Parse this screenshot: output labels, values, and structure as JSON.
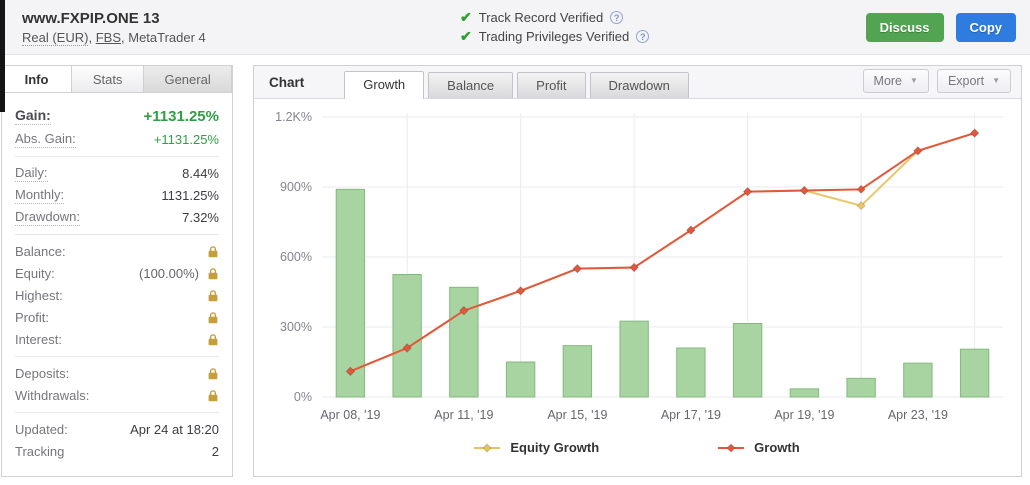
{
  "header": {
    "title": "www.FXPIP.ONE 13",
    "account": "Real (EUR)",
    "broker": "FBS",
    "platform": "MetaTrader 4",
    "separator": ", ",
    "verifications": [
      "Track Record Verified",
      "Trading Privileges Verified"
    ],
    "buttons": {
      "discuss": "Discuss",
      "copy": "Copy"
    },
    "colors": {
      "discuss": "#52a452",
      "copy": "#2f7ce0"
    }
  },
  "info_panel": {
    "tabs": [
      {
        "label": "Info",
        "active": true
      },
      {
        "label": "Stats",
        "active": false
      },
      {
        "label": "General",
        "active": false
      }
    ],
    "sections": [
      {
        "rows": [
          {
            "label": "Gain:",
            "value": "+1131.25%",
            "green": true,
            "big": true,
            "dotted": true
          },
          {
            "label": "Abs. Gain:",
            "value": "+1131.25%",
            "green": true,
            "dotted": true
          }
        ]
      },
      {
        "rows": [
          {
            "label": "Daily:",
            "value": "8.44%",
            "dotted": true
          },
          {
            "label": "Monthly:",
            "value": "1131.25%",
            "dotted": true
          },
          {
            "label": "Drawdown:",
            "value": "7.32%",
            "dotted": true
          }
        ]
      },
      {
        "rows": [
          {
            "label": "Balance:",
            "lock": true
          },
          {
            "label": "Equity:",
            "value": "(100.00%)",
            "muted": true,
            "lock": true
          },
          {
            "label": "Highest:",
            "lock": true
          },
          {
            "label": "Profit:",
            "lock": true
          },
          {
            "label": "Interest:",
            "lock": true
          }
        ]
      },
      {
        "rows": [
          {
            "label": "Deposits:",
            "lock": true
          },
          {
            "label": "Withdrawals:",
            "lock": true
          }
        ]
      },
      {
        "rows": [
          {
            "label": "Updated:",
            "value": "Apr 24 at 18:20"
          },
          {
            "label": "Tracking",
            "value": "2"
          }
        ]
      }
    ],
    "lock_color": "#c59f3e"
  },
  "chart_panel": {
    "title": "Chart",
    "tabs": [
      "Growth",
      "Balance",
      "Profit",
      "Drawdown"
    ],
    "active_tab": "Growth",
    "more_label": "More",
    "export_label": "Export"
  },
  "chart_data": {
    "type": "bar",
    "title": "Growth",
    "slots": 12,
    "label_every": 2,
    "x_tick_labels": [
      "Apr 08, '19",
      "Apr 11, '19",
      "Apr 15, '19",
      "Apr 17, '19",
      "Apr 19, '19",
      "Apr 23, '19"
    ],
    "bars": {
      "name": "Daily gain %",
      "values": [
        890,
        525,
        470,
        150,
        220,
        325,
        210,
        315,
        35,
        80,
        145,
        205
      ]
    },
    "series": [
      {
        "name": "Equity Growth",
        "color": "#e9c767",
        "values": [
          110,
          210,
          370,
          455,
          550,
          555,
          715,
          880,
          885,
          820,
          1055,
          1131
        ]
      },
      {
        "name": "Growth",
        "color": "#e2573d",
        "values": [
          110,
          210,
          370,
          455,
          550,
          555,
          715,
          880,
          885,
          890,
          1055,
          1131
        ]
      }
    ],
    "ylim": [
      0,
      1200
    ],
    "yticks": [
      {
        "v": 0,
        "label": "0%"
      },
      {
        "v": 300,
        "label": "300%"
      },
      {
        "v": 600,
        "label": "600%"
      },
      {
        "v": 900,
        "label": "900%"
      },
      {
        "v": 1200,
        "label": "1.2K%"
      }
    ],
    "grid": true,
    "bar_color": "#a7d4a0",
    "bar_border": "#84b97e",
    "grid_color": "#ebebf0",
    "legend_position": "bottom",
    "legend": [
      {
        "label": "Equity Growth",
        "color": "#e6c35c"
      },
      {
        "label": "Growth",
        "color": "#e2573d"
      }
    ]
  }
}
